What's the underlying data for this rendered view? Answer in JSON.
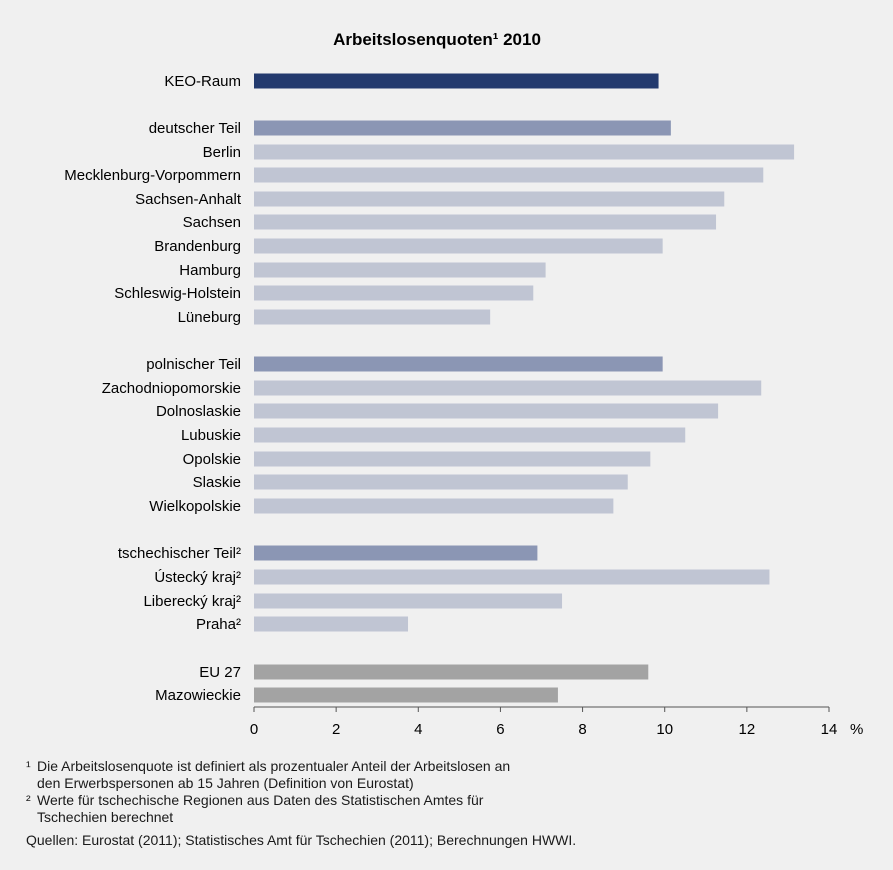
{
  "chart_data": {
    "type": "bar",
    "orientation": "horizontal",
    "title": "Arbeitslosenquoten¹ 2010",
    "unit": "%",
    "xlim": [
      0,
      14
    ],
    "xticks": [
      0,
      2,
      4,
      6,
      8,
      10,
      12,
      14
    ],
    "grid": false,
    "colors": {
      "total": "#233a6e",
      "group": "#8b96b4",
      "region": "#c0c5d3",
      "reference": "#a3a3a3"
    },
    "categories": [
      {
        "label": "KEO-Raum",
        "value": 9.85,
        "kind": "total"
      },
      {
        "label": "deutscher Teil",
        "value": 10.15,
        "kind": "group"
      },
      {
        "label": "Berlin",
        "value": 13.15,
        "kind": "region"
      },
      {
        "label": "Mecklenburg-Vorpommern",
        "value": 12.4,
        "kind": "region"
      },
      {
        "label": "Sachsen-Anhalt",
        "value": 11.45,
        "kind": "region"
      },
      {
        "label": "Sachsen",
        "value": 11.25,
        "kind": "region"
      },
      {
        "label": "Brandenburg",
        "value": 9.95,
        "kind": "region"
      },
      {
        "label": "Hamburg",
        "value": 7.1,
        "kind": "region"
      },
      {
        "label": "Schleswig-Holstein",
        "value": 6.8,
        "kind": "region"
      },
      {
        "label": "Lüneburg",
        "value": 5.75,
        "kind": "region"
      },
      {
        "label": "polnischer Teil",
        "value": 9.95,
        "kind": "group"
      },
      {
        "label": "Zachodniopomorskie",
        "value": 12.35,
        "kind": "region"
      },
      {
        "label": "Dolnoslaskie",
        "value": 11.3,
        "kind": "region"
      },
      {
        "label": "Lubuskie",
        "value": 10.5,
        "kind": "region"
      },
      {
        "label": "Opolskie",
        "value": 9.65,
        "kind": "region"
      },
      {
        "label": "Slaskie",
        "value": 9.1,
        "kind": "region"
      },
      {
        "label": "Wielkopolskie",
        "value": 8.75,
        "kind": "region"
      },
      {
        "label": "tschechischer Teil²",
        "value": 6.9,
        "kind": "group"
      },
      {
        "label": "Ústecký kraj²",
        "value": 12.55,
        "kind": "region"
      },
      {
        "label": "Liberecký kraj²",
        "value": 7.5,
        "kind": "region"
      },
      {
        "label": "Praha²",
        "value": 3.75,
        "kind": "region"
      },
      {
        "label": "EU 27",
        "value": 9.6,
        "kind": "reference"
      },
      {
        "label": "Mazowieckie",
        "value": 7.4,
        "kind": "reference"
      }
    ]
  },
  "footnotes": {
    "note1_mark": "¹",
    "note1_line1": "Die Arbeitslosenquote ist definiert als prozentualer Anteil der Arbeitslosen an",
    "note1_line2": "den Erwerbspersonen ab 15 Jahren  (Definition von Eurostat)",
    "note2_mark": "²",
    "note2_line1": "Werte für tschechische Regionen aus Daten des Statistischen Amtes für",
    "note2_line2": "Tschechien berechnet",
    "source": "Quellen: Eurostat (2011); Statistisches Amt für Tschechien (2011); Berechnungen HWWI."
  }
}
